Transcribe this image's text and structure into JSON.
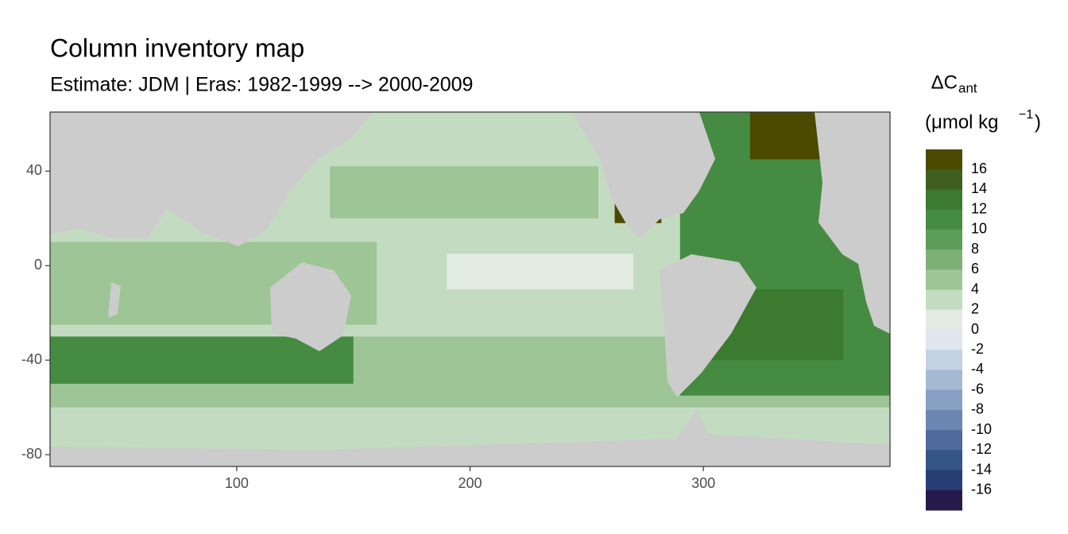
{
  "chart_data": {
    "type": "map",
    "title": "Column inventory map",
    "subtitle": "Estimate: JDM  | Eras: 1982-1999 --> 2000-2009",
    "xlim": [
      20,
      380
    ],
    "ylim": [
      -85,
      65
    ],
    "xticks": [
      100,
      200,
      300
    ],
    "yticks": [
      40,
      0,
      -40,
      -80
    ],
    "grid": false,
    "land_color": "#cccccc",
    "legend": {
      "title": "ΔC",
      "title_subscript": "ant",
      "unit": "(μmol kg",
      "unit_superscript": "−1",
      "unit_close": ")",
      "breaks": [
        16,
        14,
        12,
        10,
        8,
        6,
        4,
        2,
        0,
        -2,
        -4,
        -6,
        -8,
        -10,
        -12,
        -14,
        -16
      ],
      "colors": [
        "#4b4a00",
        "#3f5f1f",
        "#3b7a2f",
        "#468b42",
        "#5c9d59",
        "#7cb075",
        "#9dc596",
        "#c3dcc1",
        "#e2ece2",
        "#dfe6ef",
        "#c4d1e3",
        "#a6b9d3",
        "#87a0c3",
        "#6a86b1",
        "#4f6b9c",
        "#355587",
        "#263e72",
        "#261a4a"
      ]
    },
    "regions": [
      {
        "value": 3,
        "lon": [
          20,
          380
        ],
        "lat": [
          -78,
          65
        ]
      },
      {
        "value": 5,
        "lon": [
          20,
          380
        ],
        "lat": [
          -60,
          -30
        ]
      },
      {
        "value": 11,
        "lon": [
          20,
          150
        ],
        "lat": [
          -50,
          -30
        ]
      },
      {
        "value": 5,
        "lon": [
          20,
          160
        ],
        "lat": [
          -25,
          10
        ]
      },
      {
        "value": 11,
        "lon": [
          290,
          380
        ],
        "lat": [
          -55,
          65
        ]
      },
      {
        "value": 13,
        "lon": [
          300,
          360
        ],
        "lat": [
          -40,
          -10
        ]
      },
      {
        "value": 17,
        "lon": [
          320,
          365
        ],
        "lat": [
          45,
          65
        ]
      },
      {
        "value": 17,
        "lon": [
          262,
          282
        ],
        "lat": [
          18,
          30
        ]
      },
      {
        "value": 5,
        "lon": [
          140,
          255
        ],
        "lat": [
          20,
          42
        ]
      },
      {
        "value": 1,
        "lon": [
          190,
          270
        ],
        "lat": [
          -10,
          5
        ]
      }
    ]
  }
}
